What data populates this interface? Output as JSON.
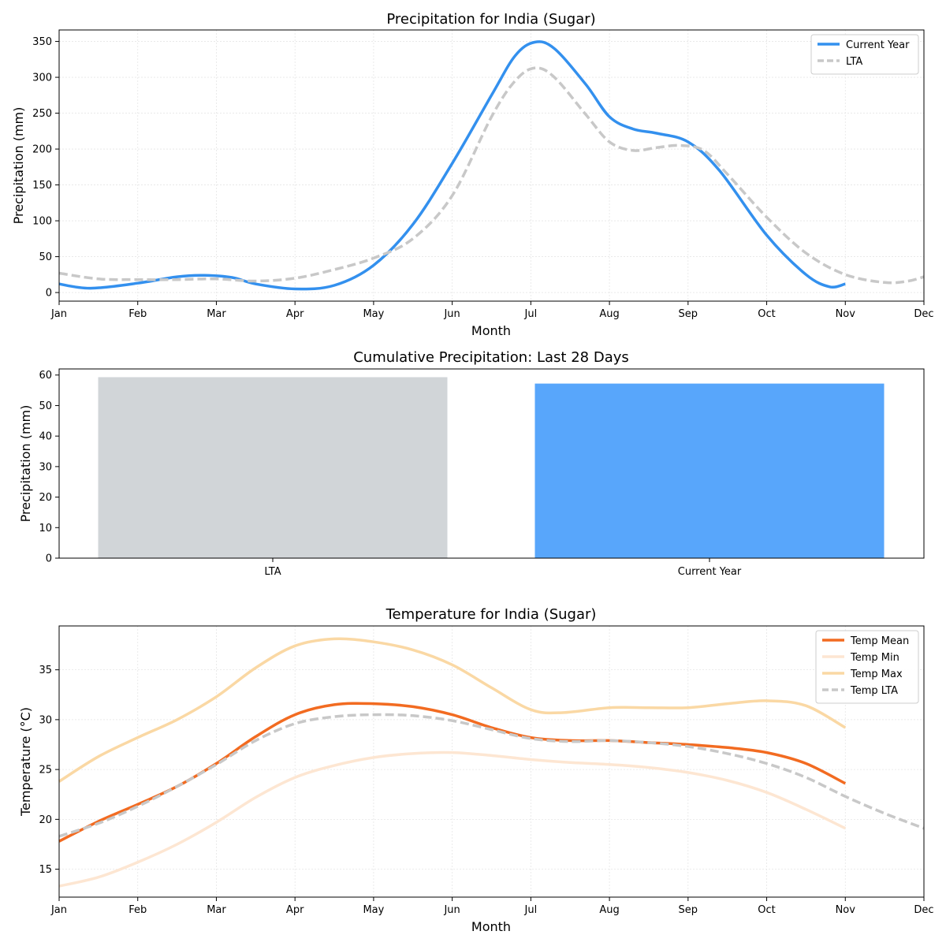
{
  "months": [
    "Jan",
    "Feb",
    "Mar",
    "Apr",
    "May",
    "Jun",
    "Jul",
    "Aug",
    "Sep",
    "Oct",
    "Nov",
    "Dec"
  ],
  "chart_data": [
    {
      "type": "line",
      "title": "Precipitation for India (Sugar)",
      "xlabel": "Month",
      "ylabel": "Precipitation (mm)",
      "xlim": [
        1,
        12
      ],
      "ylim": [
        -12,
        366
      ],
      "yticks": [
        0,
        50,
        100,
        150,
        200,
        250,
        300,
        350
      ],
      "x_ticks": [
        "Jan",
        "Feb",
        "Mar",
        "Apr",
        "May",
        "Jun",
        "Jul",
        "Aug",
        "Sep",
        "Oct",
        "Nov",
        "Dec"
      ],
      "grid": true,
      "legend_position": "top-right",
      "series": [
        {
          "name": "Current Year",
          "color": "#3390ee",
          "style": "solid",
          "points": [
            [
              1,
              12
            ],
            [
              1.4,
              6
            ],
            [
              2,
              13
            ],
            [
              2.5,
              22
            ],
            [
              2.85,
              24
            ],
            [
              3.2,
              21
            ],
            [
              3.5,
              12
            ],
            [
              4,
              5
            ],
            [
              4.5,
              10
            ],
            [
              5,
              38
            ],
            [
              5.5,
              95
            ],
            [
              6,
              180
            ],
            [
              6.5,
              275
            ],
            [
              6.8,
              330
            ],
            [
              7.05,
              349
            ],
            [
              7.3,
              340
            ],
            [
              7.7,
              290
            ],
            [
              8,
              245
            ],
            [
              8.3,
              228
            ],
            [
              8.6,
              222
            ],
            [
              9,
              210
            ],
            [
              9.4,
              170
            ],
            [
              10,
              80
            ],
            [
              10.5,
              25
            ],
            [
              10.8,
              8
            ],
            [
              11,
              12
            ]
          ]
        },
        {
          "name": "LTA",
          "color": "#c8c8c8",
          "style": "dashed",
          "points": [
            [
              1,
              27
            ],
            [
              1.5,
              19
            ],
            [
              2,
              18
            ],
            [
              2.5,
              18
            ],
            [
              3,
              19
            ],
            [
              3.5,
              16
            ],
            [
              4,
              20
            ],
            [
              4.5,
              32
            ],
            [
              5,
              48
            ],
            [
              5.5,
              75
            ],
            [
              6,
              135
            ],
            [
              6.5,
              245
            ],
            [
              6.8,
              295
            ],
            [
              7.05,
              313
            ],
            [
              7.3,
              300
            ],
            [
              7.7,
              248
            ],
            [
              8,
              210
            ],
            [
              8.3,
              198
            ],
            [
              8.6,
              202
            ],
            [
              8.9,
              205
            ],
            [
              9.2,
              198
            ],
            [
              9.5,
              165
            ],
            [
              10,
              105
            ],
            [
              10.5,
              55
            ],
            [
              11,
              25
            ],
            [
              11.5,
              14
            ],
            [
              11.8,
              16
            ],
            [
              12,
              22
            ]
          ]
        }
      ]
    },
    {
      "type": "bar",
      "title": "Cumulative Precipitation: Last 28 Days",
      "xlabel": "",
      "ylabel": "Precipitation (mm)",
      "ylim": [
        0,
        62
      ],
      "yticks": [
        0,
        10,
        20,
        30,
        40,
        50,
        60
      ],
      "categories": [
        "LTA",
        "Current Year"
      ],
      "values": [
        59.3,
        57.2
      ],
      "colors": [
        "#d1d5d8",
        "#58a6fb"
      ]
    },
    {
      "type": "line",
      "title": "Temperature for India (Sugar)",
      "xlabel": "Month",
      "ylabel": "Temperature (°C)",
      "xlim": [
        1,
        12
      ],
      "ylim": [
        12.2,
        39.4
      ],
      "yticks": [
        15,
        20,
        25,
        30,
        35
      ],
      "x_ticks": [
        "Jan",
        "Feb",
        "Mar",
        "Apr",
        "May",
        "Jun",
        "Jul",
        "Aug",
        "Sep",
        "Oct",
        "Nov",
        "Dec"
      ],
      "grid": true,
      "legend_position": "top-right",
      "series": [
        {
          "name": "Temp Mean",
          "color": "#f26b21",
          "style": "solid",
          "points": [
            [
              1,
              17.8
            ],
            [
              1.5,
              19.8
            ],
            [
              2,
              21.5
            ],
            [
              2.5,
              23.3
            ],
            [
              3,
              25.6
            ],
            [
              3.5,
              28.3
            ],
            [
              4,
              30.5
            ],
            [
              4.5,
              31.5
            ],
            [
              5,
              31.6
            ],
            [
              5.5,
              31.3
            ],
            [
              6,
              30.5
            ],
            [
              6.5,
              29.2
            ],
            [
              7,
              28.2
            ],
            [
              7.5,
              27.9
            ],
            [
              8,
              27.9
            ],
            [
              8.5,
              27.7
            ],
            [
              9,
              27.5
            ],
            [
              9.5,
              27.2
            ],
            [
              10,
              26.7
            ],
            [
              10.5,
              25.6
            ],
            [
              11,
              23.6
            ]
          ]
        },
        {
          "name": "Temp Min",
          "color": "#fde6d2",
          "style": "solid",
          "points": [
            [
              1,
              13.3
            ],
            [
              1.5,
              14.2
            ],
            [
              2,
              15.7
            ],
            [
              2.5,
              17.5
            ],
            [
              3,
              19.7
            ],
            [
              3.5,
              22.2
            ],
            [
              4,
              24.2
            ],
            [
              4.5,
              25.4
            ],
            [
              5,
              26.2
            ],
            [
              5.5,
              26.6
            ],
            [
              6,
              26.7
            ],
            [
              6.5,
              26.4
            ],
            [
              7,
              26.0
            ],
            [
              7.5,
              25.7
            ],
            [
              8,
              25.5
            ],
            [
              8.5,
              25.2
            ],
            [
              9,
              24.7
            ],
            [
              9.5,
              23.9
            ],
            [
              10,
              22.7
            ],
            [
              10.5,
              21.0
            ],
            [
              11,
              19.1
            ]
          ]
        },
        {
          "name": "Temp Max",
          "color": "#fad8a4",
          "style": "solid",
          "points": [
            [
              1,
              23.8
            ],
            [
              1.5,
              26.3
            ],
            [
              2,
              28.2
            ],
            [
              2.5,
              30.0
            ],
            [
              3,
              32.3
            ],
            [
              3.5,
              35.2
            ],
            [
              4,
              37.4
            ],
            [
              4.5,
              38.1
            ],
            [
              5,
              37.8
            ],
            [
              5.5,
              37.0
            ],
            [
              6,
              35.5
            ],
            [
              6.5,
              33.2
            ],
            [
              7,
              31.0
            ],
            [
              7.4,
              30.7
            ],
            [
              8,
              31.2
            ],
            [
              8.5,
              31.2
            ],
            [
              9,
              31.2
            ],
            [
              9.5,
              31.6
            ],
            [
              10,
              31.9
            ],
            [
              10.5,
              31.4
            ],
            [
              11,
              29.2
            ]
          ]
        },
        {
          "name": "Temp LTA",
          "color": "#c8c8c8",
          "style": "dashed",
          "points": [
            [
              1,
              18.3
            ],
            [
              1.5,
              19.6
            ],
            [
              2,
              21.3
            ],
            [
              2.5,
              23.3
            ],
            [
              3,
              25.5
            ],
            [
              3.5,
              27.9
            ],
            [
              4,
              29.6
            ],
            [
              4.5,
              30.3
            ],
            [
              5,
              30.5
            ],
            [
              5.5,
              30.4
            ],
            [
              6,
              29.9
            ],
            [
              6.5,
              29.0
            ],
            [
              7,
              28.1
            ],
            [
              7.5,
              27.8
            ],
            [
              8,
              27.9
            ],
            [
              8.5,
              27.7
            ],
            [
              9,
              27.3
            ],
            [
              9.5,
              26.6
            ],
            [
              10,
              25.6
            ],
            [
              10.5,
              24.2
            ],
            [
              11,
              22.3
            ],
            [
              11.5,
              20.6
            ],
            [
              12,
              19.1
            ]
          ]
        }
      ]
    }
  ]
}
